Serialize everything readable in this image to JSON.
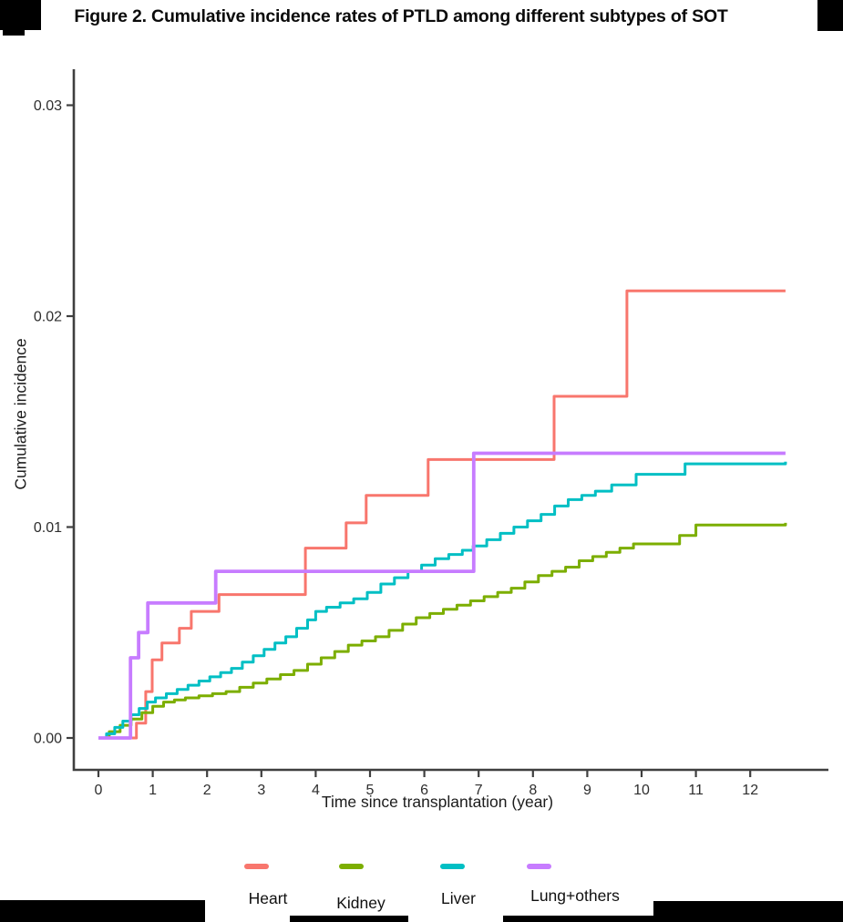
{
  "figure": {
    "title": "Figure 2. Cumulative incidence rates of PTLD among different subtypes of SOT"
  },
  "chart_data": {
    "type": "line",
    "line_style": "step-after",
    "title": "Figure 2. Cumulative incidence rates of PTLD among different subtypes of SOT",
    "xlabel": "Time since transplantation (year)",
    "ylabel": "Cumulative incidence",
    "xlim": [
      0,
      13.4
    ],
    "ylim": [
      0,
      0.031
    ],
    "x_ticks": [
      0,
      1,
      2,
      3,
      4,
      5,
      6,
      7,
      8,
      9,
      10,
      11,
      12
    ],
    "y_ticks": [
      {
        "value": 0.0,
        "label": "0.00"
      },
      {
        "value": 0.01,
        "label": "0.01"
      },
      {
        "value": 0.02,
        "label": "0.02"
      },
      {
        "value": 0.03,
        "label": "0.03"
      }
    ],
    "grid": false,
    "legend_position": "bottom",
    "axis_color": "#3f3f3f",
    "tick_label_color": "#2e2e2e",
    "series": [
      {
        "name": "Heart",
        "color": "#F8766D",
        "points": [
          [
            0,
            0
          ],
          [
            0.7,
            0.0007
          ],
          [
            0.87,
            0.0022
          ],
          [
            0.99,
            0.0037
          ],
          [
            1.17,
            0.0045
          ],
          [
            1.49,
            0.0052
          ],
          [
            1.71,
            0.006
          ],
          [
            2.22,
            0.0068
          ],
          [
            3.81,
            0.009
          ],
          [
            4.56,
            0.0102
          ],
          [
            4.93,
            0.0115
          ],
          [
            6.07,
            0.0132
          ],
          [
            8.39,
            0.0162
          ],
          [
            9.73,
            0.0212
          ],
          [
            12.65,
            0.0212
          ]
        ]
      },
      {
        "name": "Kidney",
        "color": "#7CAE00",
        "points": [
          [
            0,
            0
          ],
          [
            0.2,
            0.0003
          ],
          [
            0.4,
            0.0006
          ],
          [
            0.6,
            0.0009
          ],
          [
            0.8,
            0.0012
          ],
          [
            1.0,
            0.0015
          ],
          [
            1.2,
            0.0017
          ],
          [
            1.4,
            0.0018
          ],
          [
            1.6,
            0.0019
          ],
          [
            1.85,
            0.002
          ],
          [
            2.1,
            0.0021
          ],
          [
            2.35,
            0.0022
          ],
          [
            2.6,
            0.0024
          ],
          [
            2.85,
            0.0026
          ],
          [
            3.1,
            0.0028
          ],
          [
            3.35,
            0.003
          ],
          [
            3.6,
            0.0032
          ],
          [
            3.85,
            0.0035
          ],
          [
            4.1,
            0.0038
          ],
          [
            4.35,
            0.0041
          ],
          [
            4.6,
            0.0044
          ],
          [
            4.85,
            0.0046
          ],
          [
            5.1,
            0.0048
          ],
          [
            5.35,
            0.0051
          ],
          [
            5.6,
            0.0054
          ],
          [
            5.85,
            0.0057
          ],
          [
            6.1,
            0.0059
          ],
          [
            6.35,
            0.0061
          ],
          [
            6.6,
            0.0063
          ],
          [
            6.85,
            0.0065
          ],
          [
            7.1,
            0.0067
          ],
          [
            7.35,
            0.0069
          ],
          [
            7.6,
            0.0071
          ],
          [
            7.85,
            0.0074
          ],
          [
            8.1,
            0.0077
          ],
          [
            8.35,
            0.0079
          ],
          [
            8.6,
            0.0081
          ],
          [
            8.85,
            0.0084
          ],
          [
            9.1,
            0.0086
          ],
          [
            9.35,
            0.0088
          ],
          [
            9.6,
            0.009
          ],
          [
            9.85,
            0.0092
          ],
          [
            10.7,
            0.0096
          ],
          [
            11.0,
            0.0101
          ],
          [
            12.65,
            0.0102
          ]
        ]
      },
      {
        "name": "Liver",
        "color": "#00BFC4",
        "points": [
          [
            0,
            0
          ],
          [
            0.15,
            0.0002
          ],
          [
            0.3,
            0.0005
          ],
          [
            0.45,
            0.0008
          ],
          [
            0.6,
            0.0011
          ],
          [
            0.75,
            0.0014
          ],
          [
            0.9,
            0.0017
          ],
          [
            1.05,
            0.0019
          ],
          [
            1.25,
            0.0021
          ],
          [
            1.45,
            0.0023
          ],
          [
            1.65,
            0.0025
          ],
          [
            1.85,
            0.0027
          ],
          [
            2.05,
            0.0029
          ],
          [
            2.25,
            0.0031
          ],
          [
            2.45,
            0.0033
          ],
          [
            2.65,
            0.0036
          ],
          [
            2.85,
            0.0039
          ],
          [
            3.05,
            0.0042
          ],
          [
            3.25,
            0.0045
          ],
          [
            3.45,
            0.0048
          ],
          [
            3.65,
            0.0052
          ],
          [
            3.85,
            0.0056
          ],
          [
            4.0,
            0.006
          ],
          [
            4.2,
            0.0062
          ],
          [
            4.45,
            0.0064
          ],
          [
            4.7,
            0.0066
          ],
          [
            4.95,
            0.0069
          ],
          [
            5.2,
            0.0073
          ],
          [
            5.45,
            0.0076
          ],
          [
            5.7,
            0.0079
          ],
          [
            5.95,
            0.0082
          ],
          [
            6.2,
            0.0085
          ],
          [
            6.45,
            0.0087
          ],
          [
            6.7,
            0.0089
          ],
          [
            6.9,
            0.0091
          ],
          [
            7.15,
            0.0094
          ],
          [
            7.4,
            0.0097
          ],
          [
            7.65,
            0.01
          ],
          [
            7.9,
            0.0103
          ],
          [
            8.15,
            0.0106
          ],
          [
            8.4,
            0.011
          ],
          [
            8.65,
            0.0113
          ],
          [
            8.9,
            0.0115
          ],
          [
            9.15,
            0.0117
          ],
          [
            9.45,
            0.012
          ],
          [
            9.9,
            0.0125
          ],
          [
            10.8,
            0.013
          ],
          [
            12.65,
            0.0131
          ]
        ]
      },
      {
        "name": "Lung+others",
        "color": "#C77CFF",
        "points": [
          [
            0,
            0
          ],
          [
            0.59,
            0.0038
          ],
          [
            0.74,
            0.005
          ],
          [
            0.91,
            0.0064
          ],
          [
            2.16,
            0.0079
          ],
          [
            6.91,
            0.0135
          ],
          [
            12.65,
            0.0135
          ]
        ]
      }
    ]
  },
  "legend": {
    "items": [
      {
        "label": "Heart",
        "color": "#F8766D"
      },
      {
        "label": "Kidney",
        "color": "#7CAE00"
      },
      {
        "label": "Liver",
        "color": "#00BFC4"
      },
      {
        "label": "Lung+others",
        "color": "#C77CFF"
      }
    ]
  }
}
